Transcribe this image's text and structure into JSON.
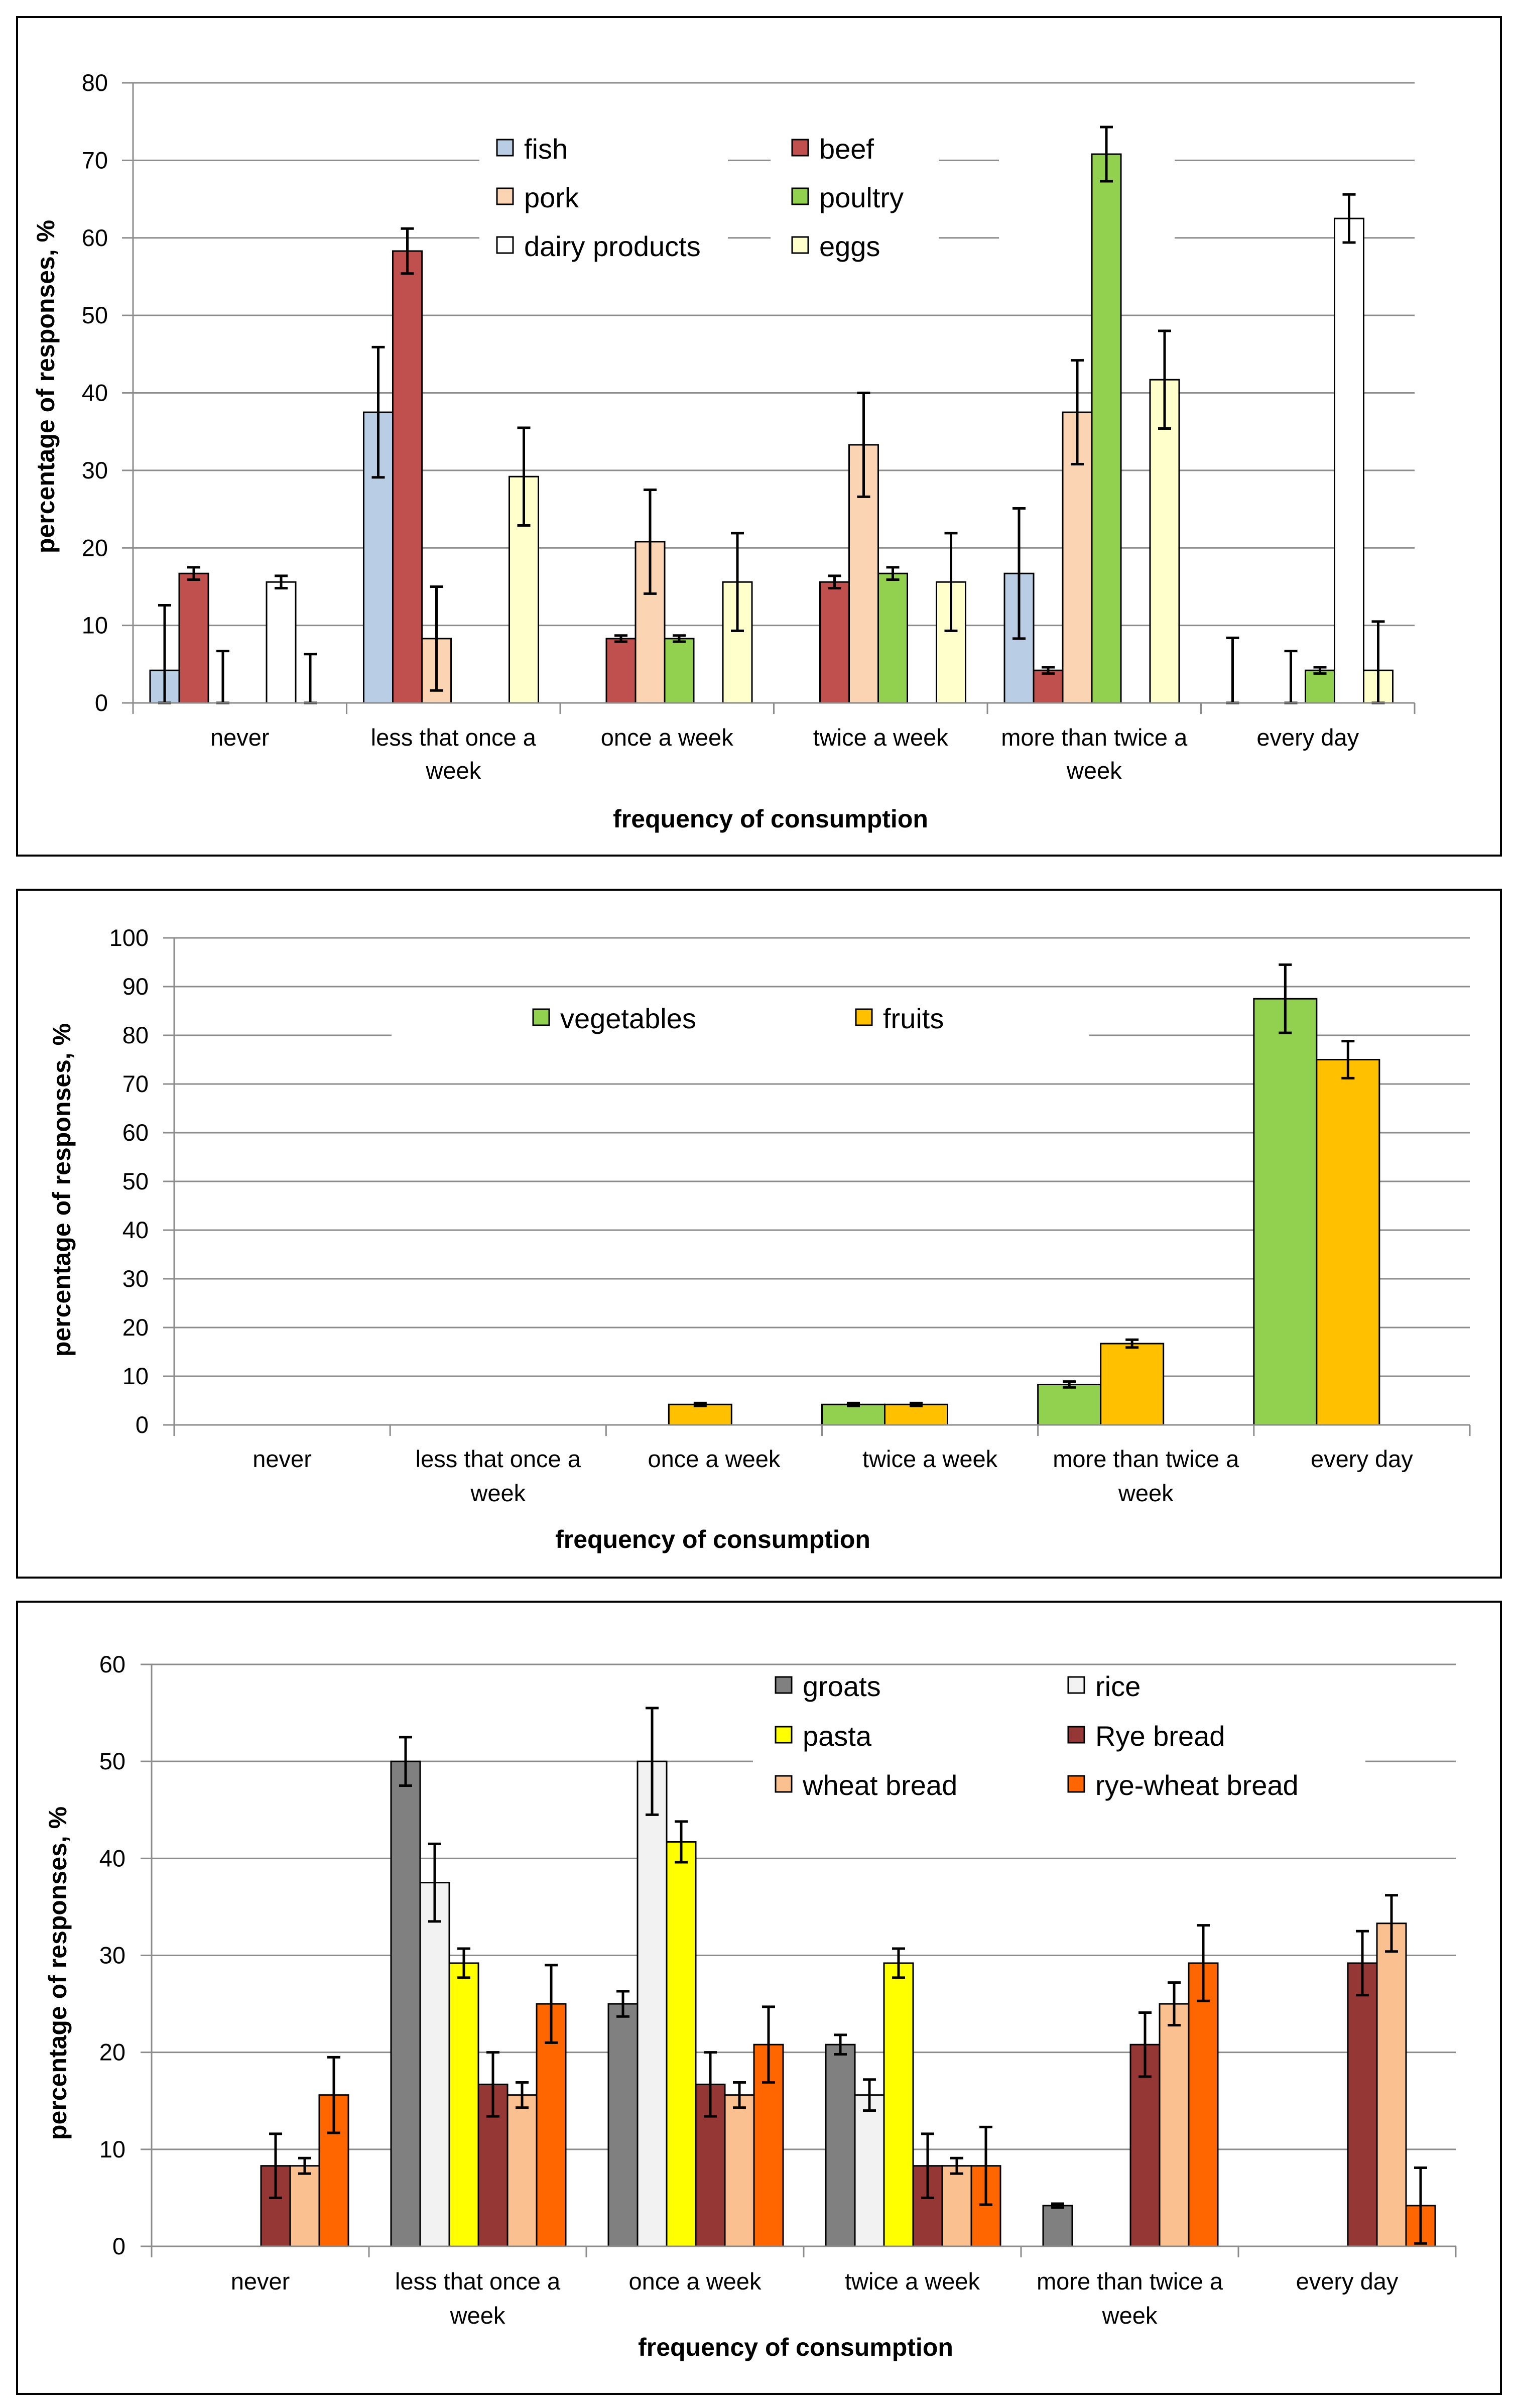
{
  "chart_data": [
    {
      "type": "bar",
      "ylabel": "percentage of responses, %",
      "xlabel": "frequency of consumption",
      "ylim": [
        0,
        80
      ],
      "ytick_step": 10,
      "categories": [
        "never",
        "less that once a week",
        "once a week",
        "twice a week",
        "more than twice a week",
        "every day"
      ],
      "category_lines": [
        [
          "never"
        ],
        [
          "less that once a",
          "week"
        ],
        [
          "once a week"
        ],
        [
          "twice a week"
        ],
        [
          "more than twice a",
          "week"
        ],
        [
          "every day"
        ]
      ],
      "series": [
        {
          "name": "fish",
          "color": "#b9cde5",
          "values": [
            4.2,
            37.5,
            0,
            0,
            16.7,
            0
          ],
          "errors": [
            8.4,
            8.4,
            0,
            0,
            8.4,
            8.4
          ]
        },
        {
          "name": "beef",
          "color": "#c0504d",
          "values": [
            16.7,
            58.3,
            8.3,
            15.6,
            4.2,
            0
          ],
          "errors": [
            0.8,
            2.9,
            0.4,
            0.8,
            0.4,
            0
          ]
        },
        {
          "name": "pork",
          "color": "#fbd4b4",
          "values": [
            0,
            8.3,
            20.8,
            33.3,
            37.5,
            0
          ],
          "errors": [
            6.7,
            6.7,
            6.7,
            6.7,
            6.7,
            6.7
          ]
        },
        {
          "name": "poultry",
          "color": "#92d050",
          "values": [
            0,
            0,
            8.3,
            16.7,
            70.8,
            4.2
          ],
          "errors": [
            0,
            0,
            0.4,
            0.8,
            3.5,
            0.4
          ]
        },
        {
          "name": "dairy products",
          "color": "#ffffff",
          "values": [
            15.6,
            0,
            0,
            0,
            0,
            62.5
          ],
          "errors": [
            0.8,
            0,
            0,
            0,
            0,
            3.1
          ]
        },
        {
          "name": "eggs",
          "color": "#ffffcc",
          "values": [
            0,
            29.2,
            15.6,
            15.6,
            41.7,
            4.2
          ],
          "errors": [
            6.3,
            6.3,
            6.3,
            6.3,
            6.3,
            6.3
          ]
        }
      ]
    },
    {
      "type": "bar",
      "ylabel": "percentage of responses, %",
      "xlabel": "frequency of consumption",
      "ylim": [
        0,
        100
      ],
      "ytick_step": 10,
      "categories": [
        "never",
        "less that once a week",
        "once a week",
        "twice a week",
        "more than twice a week",
        "every day"
      ],
      "category_lines": [
        [
          "never"
        ],
        [
          "less that once a",
          "week"
        ],
        [
          "once a week"
        ],
        [
          "twice a week"
        ],
        [
          "more than twice a",
          "week"
        ],
        [
          "every day"
        ]
      ],
      "series": [
        {
          "name": "vegetables",
          "color": "#92d050",
          "values": [
            0,
            0,
            0,
            4.2,
            8.3,
            87.5
          ],
          "errors": [
            0,
            0,
            0,
            0.3,
            0.6,
            7.0
          ]
        },
        {
          "name": "fruits",
          "color": "#ffc000",
          "values": [
            0,
            0,
            4.2,
            4.2,
            16.7,
            75.0
          ],
          "errors": [
            0,
            0,
            0.3,
            0.3,
            0.8,
            3.8
          ]
        }
      ]
    },
    {
      "type": "bar",
      "ylabel": "percentage of responses, %",
      "xlabel": "frequency of consumption",
      "ylim": [
        0,
        60
      ],
      "ytick_step": 10,
      "categories": [
        "never",
        "less that once a week",
        "once a week",
        "twice a week",
        "more than twice a week",
        "every day"
      ],
      "category_lines": [
        [
          "never"
        ],
        [
          "less that once a",
          "week"
        ],
        [
          "once a week"
        ],
        [
          "twice a week"
        ],
        [
          "more than twice a",
          "week"
        ],
        [
          "every day"
        ]
      ],
      "series": [
        {
          "name": "groats",
          "color": "#808080",
          "values": [
            0,
            50.0,
            25.0,
            20.8,
            4.2,
            0
          ],
          "errors": [
            0,
            2.5,
            1.3,
            1.0,
            0.2,
            0
          ]
        },
        {
          "name": "rice",
          "color": "#f2f2f2",
          "values": [
            0,
            37.5,
            50.0,
            15.6,
            0,
            0
          ],
          "errors": [
            0,
            4.0,
            5.5,
            1.6,
            0,
            0
          ]
        },
        {
          "name": "pasta",
          "color": "#ffff00",
          "values": [
            0,
            29.2,
            41.7,
            29.2,
            0,
            0
          ],
          "errors": [
            0,
            1.5,
            2.1,
            1.5,
            0,
            0
          ]
        },
        {
          "name": "Rye bread",
          "color": "#953735",
          "values": [
            8.3,
            16.7,
            16.7,
            8.3,
            20.8,
            29.2
          ],
          "errors": [
            3.3,
            3.3,
            3.3,
            3.3,
            3.3,
            3.3
          ]
        },
        {
          "name": "wheat bread",
          "color": "#fac090",
          "values": [
            8.3,
            15.6,
            15.6,
            8.3,
            25.0,
            33.3
          ],
          "errors": [
            0.8,
            1.3,
            1.3,
            0.8,
            2.2,
            2.9
          ]
        },
        {
          "name": "rye-wheat bread",
          "color": "#ff6600",
          "values": [
            15.6,
            25.0,
            20.8,
            8.3,
            29.2,
            4.2
          ],
          "errors": [
            3.9,
            4.0,
            3.9,
            4.0,
            3.9,
            3.9
          ]
        }
      ]
    }
  ]
}
